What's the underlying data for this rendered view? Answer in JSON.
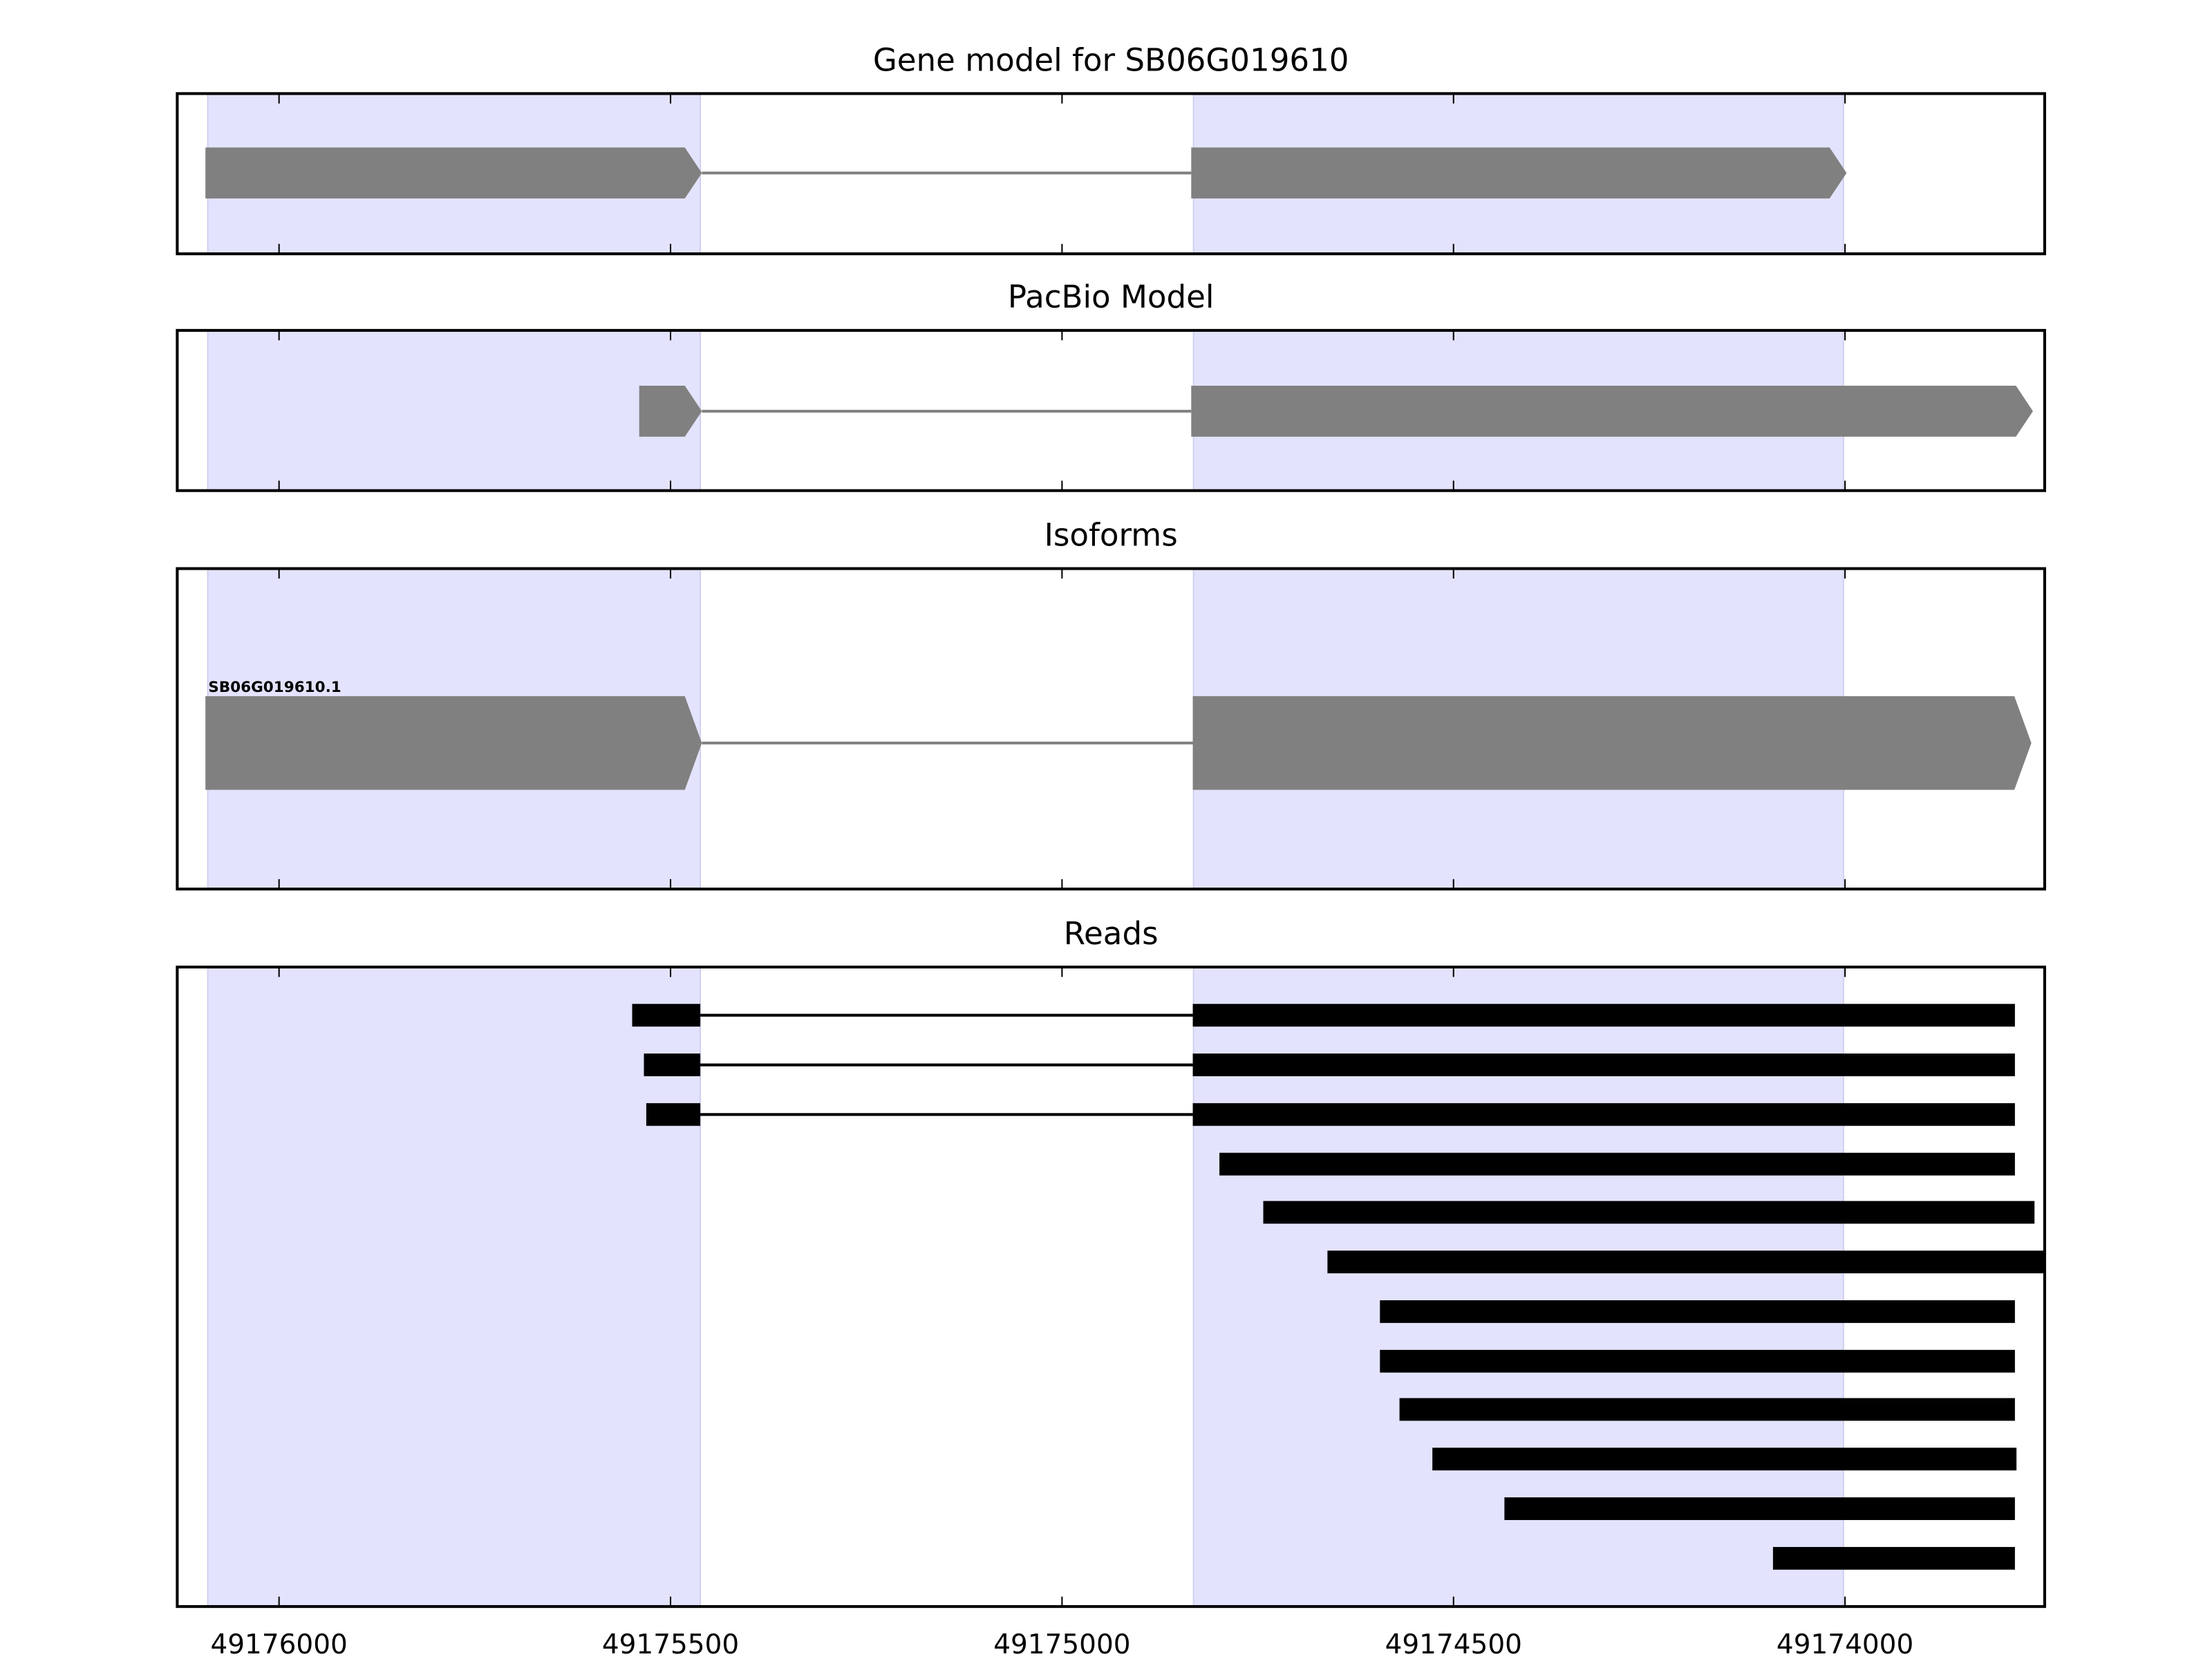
{
  "chart_data": {
    "type": "gene-track",
    "xlim": [
      49176130,
      49173745
    ],
    "xticks": [
      49176000,
      49175500,
      49175000,
      49174500,
      49174000
    ],
    "xtick_labels": [
      "49176000",
      "49175500",
      "49175000",
      "49174500",
      "49174000"
    ],
    "shaded_regions": [
      [
        49176091,
        49175462
      ],
      [
        49174832,
        49174002
      ]
    ],
    "colors": {
      "shade": "#e3e3fd",
      "shade_edge": "#d0d0f0",
      "exon": "#808080",
      "read": "#000000"
    },
    "panels": [
      {
        "title": "Gene model for SB06G019610",
        "style": "arrow",
        "rows": [
          {
            "label": "",
            "exons": [
              [
                49176094,
                49175460
              ],
              [
                49174835,
                49173998
              ]
            ]
          }
        ]
      },
      {
        "title": "PacBio Model",
        "style": "arrow",
        "rows": [
          {
            "label": "",
            "exons": [
              [
                49175540,
                49175460
              ],
              [
                49174835,
                49173760
              ]
            ]
          }
        ]
      },
      {
        "title": "Isoforms",
        "style": "arrow-large",
        "rows": [
          {
            "label": "SB06G019610.1",
            "exons": [
              [
                49176094,
                49175460
              ],
              [
                49174833,
                49173762
              ]
            ]
          }
        ]
      },
      {
        "title": "Reads",
        "style": "bar",
        "rows": [
          {
            "exons": [
              [
                49175549,
                49175462
              ],
              [
                49174833,
                49173783
              ]
            ]
          },
          {
            "exons": [
              [
                49175534,
                49175462
              ],
              [
                49174833,
                49173783
              ]
            ]
          },
          {
            "exons": [
              [
                49175531,
                49175462
              ],
              [
                49174833,
                49173783
              ]
            ]
          },
          {
            "exons": [
              [
                49174799,
                49173783
              ]
            ]
          },
          {
            "exons": [
              [
                49174743,
                49173758
              ]
            ]
          },
          {
            "exons": [
              [
                49174661,
                49173745
              ]
            ]
          },
          {
            "exons": [
              [
                49174594,
                49173783
              ]
            ]
          },
          {
            "exons": [
              [
                49174594,
                49173783
              ]
            ]
          },
          {
            "exons": [
              [
                49174569,
                49173783
              ]
            ]
          },
          {
            "exons": [
              [
                49174527,
                49173781
              ]
            ]
          },
          {
            "exons": [
              [
                49174435,
                49173783
              ]
            ]
          },
          {
            "exons": [
              [
                49174092,
                49173783
              ]
            ]
          }
        ]
      }
    ]
  }
}
